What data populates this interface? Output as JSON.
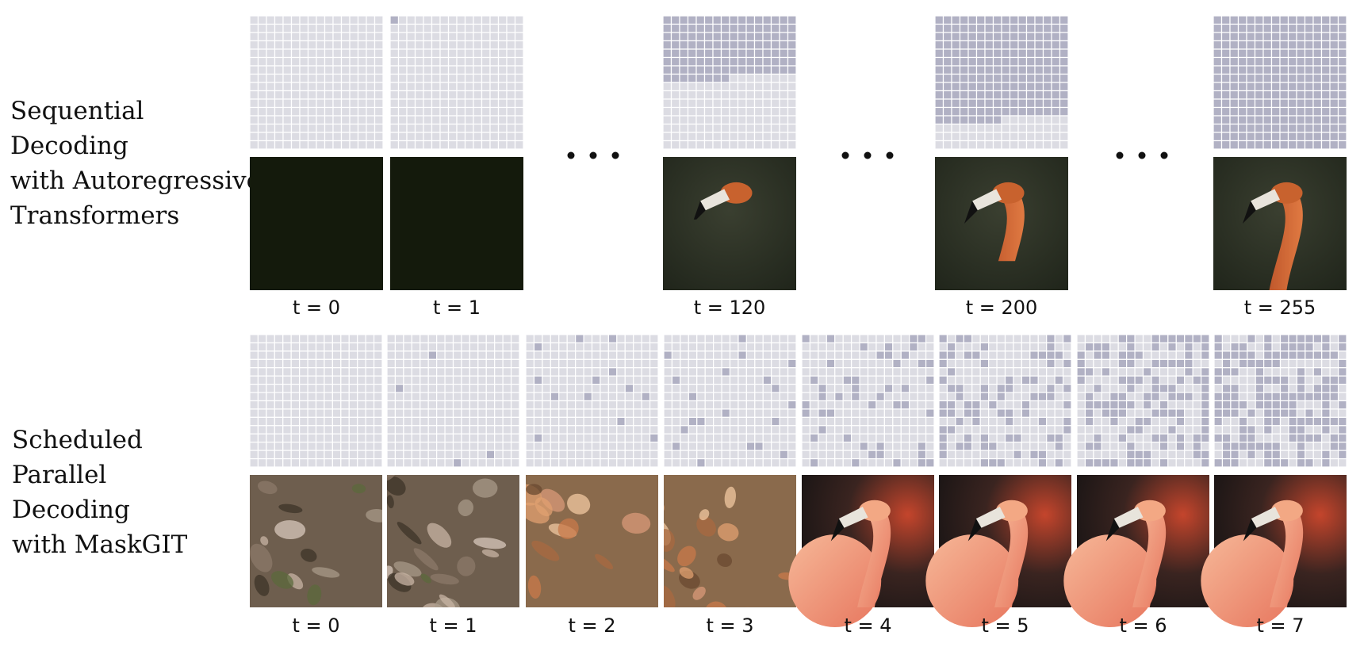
{
  "sequential": {
    "title_lines": [
      "Sequential",
      "Decoding",
      "with Autoregressive",
      "Transformers"
    ],
    "steps": [
      "t = 0",
      "t = 1",
      "t = 120",
      "t = 200",
      "t = 255"
    ]
  },
  "parallel": {
    "title_lines": [
      "Scheduled",
      "Parallel",
      "Decoding",
      "with MaskGIT"
    ],
    "steps": [
      "t = 0",
      "t = 1",
      "t = 2",
      "t = 3",
      "t = 4",
      "t = 5",
      "t = 6",
      "t = 7"
    ]
  }
}
